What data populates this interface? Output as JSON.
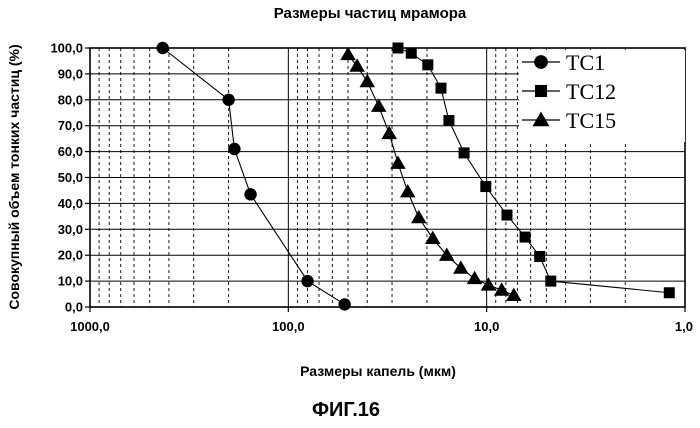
{
  "chart_data": {
    "type": "scatter",
    "title": "Размеры частиц мрамора",
    "xlabel": "Размеры капель (мкм)",
    "ylabel": "Совокупный объем тонких частиц (%)",
    "figure_label": "ФИГ.16",
    "x_scale": "log",
    "x_reversed": true,
    "xlim": [
      1000,
      1
    ],
    "ylim": [
      0,
      100
    ],
    "x_ticks": [
      {
        "value": 1000,
        "label": "1000,0"
      },
      {
        "value": 100,
        "label": "100,0"
      },
      {
        "value": 10,
        "label": "10,0"
      },
      {
        "value": 1,
        "label": "1,0"
      }
    ],
    "y_ticks": [
      {
        "value": 0,
        "label": "0,0"
      },
      {
        "value": 10,
        "label": "10,0"
      },
      {
        "value": 20,
        "label": "20,0"
      },
      {
        "value": 30,
        "label": "30,0"
      },
      {
        "value": 40,
        "label": "40,0"
      },
      {
        "value": 50,
        "label": "50,0"
      },
      {
        "value": 60,
        "label": "60,0"
      },
      {
        "value": 70,
        "label": "70,0"
      },
      {
        "value": 80,
        "label": "80,0"
      },
      {
        "value": 90,
        "label": "90,0"
      },
      {
        "value": 100,
        "label": "100,0"
      }
    ],
    "grid": true,
    "legend_position": "top-right",
    "series": [
      {
        "name": "TC1",
        "marker": "circle",
        "points": [
          [
            430,
            100
          ],
          [
            200,
            80
          ],
          [
            187,
            61
          ],
          [
            155,
            43.5
          ],
          [
            80,
            10
          ],
          [
            52,
            1
          ]
        ]
      },
      {
        "name": "TC12",
        "marker": "square",
        "points": [
          [
            28,
            100
          ],
          [
            24,
            98
          ],
          [
            19.8,
            93.5
          ],
          [
            17,
            84.5
          ],
          [
            15.5,
            72
          ],
          [
            13,
            59.5
          ],
          [
            10.1,
            46.5
          ],
          [
            7.9,
            35.5
          ],
          [
            6.4,
            27
          ],
          [
            5.4,
            19.5
          ],
          [
            4.75,
            10
          ],
          [
            1.2,
            5.5
          ]
        ]
      },
      {
        "name": "TC15",
        "marker": "triangle",
        "points": [
          [
            50,
            97.5
          ],
          [
            45,
            93
          ],
          [
            40,
            87
          ],
          [
            35,
            77.5
          ],
          [
            31,
            67
          ],
          [
            28,
            55.5
          ],
          [
            25,
            44.5
          ],
          [
            22,
            34.5
          ],
          [
            18.7,
            26.5
          ],
          [
            15.9,
            20
          ],
          [
            13.5,
            15
          ],
          [
            11.5,
            11
          ],
          [
            9.8,
            8.5
          ],
          [
            8.4,
            6.5
          ],
          [
            7.3,
            4.5
          ]
        ]
      }
    ]
  }
}
